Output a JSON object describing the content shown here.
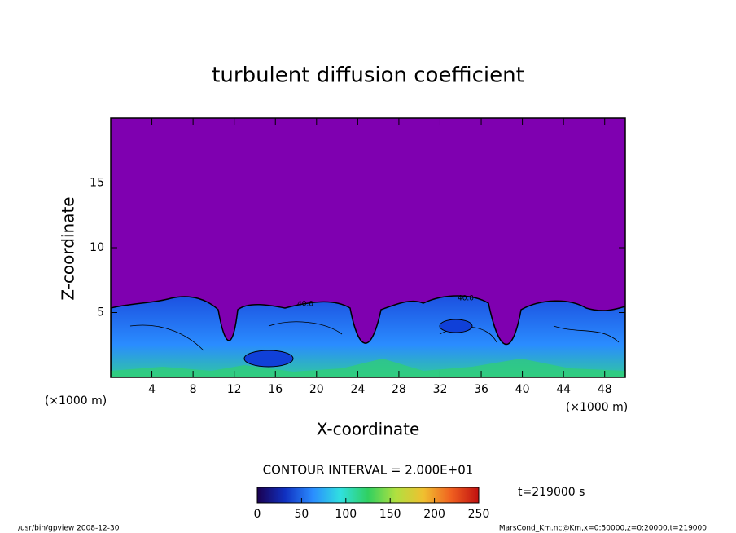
{
  "chart_data": {
    "type": "contour",
    "title": "turbulent diffusion coefficient",
    "xlabel": "X-coordinate",
    "ylabel": "Z-coordinate",
    "x_unit": "(×1000 m)",
    "y_unit": "(×1000 m)",
    "xlim": [
      0,
      50
    ],
    "ylim": [
      0,
      20
    ],
    "xticks": [
      4,
      8,
      12,
      16,
      20,
      24,
      28,
      32,
      36,
      40,
      44,
      48
    ],
    "yticks": [
      5,
      10,
      15
    ],
    "contour_interval": "CONTOUR INTERVAL = 2.000E+01",
    "contour_labels": [
      "40.0",
      "40.0"
    ],
    "time": "t=219000 s",
    "field_color": "#7f00b0",
    "colorbar": {
      "clim": [
        0,
        250
      ],
      "ticks": [
        0,
        50,
        100,
        150,
        200,
        250
      ],
      "colormap": [
        "#1a0050",
        "#1030c0",
        "#2a8cff",
        "#30e0e0",
        "#30d060",
        "#b0e040",
        "#f0c030",
        "#f06020",
        "#c01010"
      ]
    },
    "footer_left": "/usr/bin/gpview  2008-12-30",
    "footer_right": "MarsCond_Km.nc@Km,x=0:50000,z=0:20000,t=219000"
  }
}
